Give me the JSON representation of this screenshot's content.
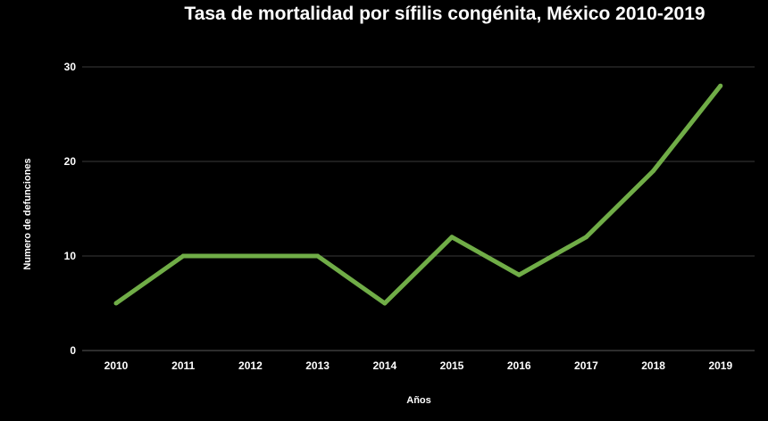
{
  "chart_data": {
    "type": "line",
    "title": "Tasa de mortalidad por sífilis congénita, México 2010-2019",
    "xlabel": "Años",
    "ylabel": "Numero de defunciones",
    "categories": [
      "2010",
      "2011",
      "2012",
      "2013",
      "2014",
      "2015",
      "2016",
      "2017",
      "2018",
      "2019"
    ],
    "yticks": [
      "0",
      "10",
      "20",
      "30"
    ],
    "ylim": [
      0,
      30
    ],
    "grid": true,
    "series": [
      {
        "values": [
          5,
          10,
          10,
          10,
          5,
          12,
          8,
          12,
          19,
          28
        ],
        "color": "#70ad47"
      }
    ]
  },
  "colors": {
    "background": "#000000",
    "text": "#ffffff",
    "grid": "#3a3a3a"
  }
}
